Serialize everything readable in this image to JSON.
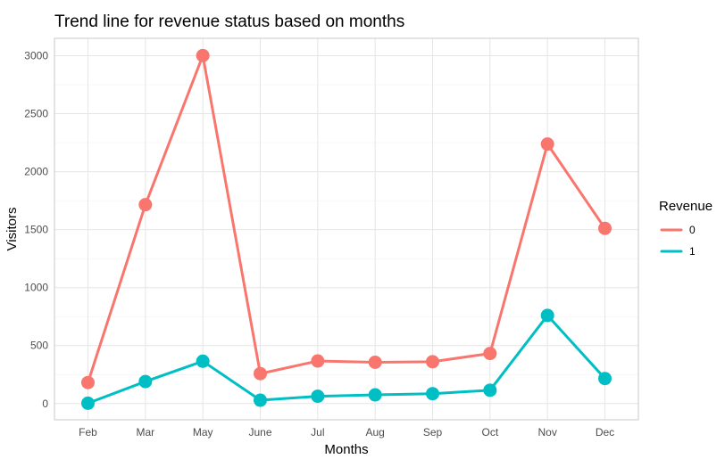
{
  "chart_data": {
    "type": "line",
    "title": "Trend line for revenue status based on months",
    "xlabel": "Months",
    "ylabel": "Visitors",
    "categories": [
      "Feb",
      "Mar",
      "May",
      "June",
      "Jul",
      "Aug",
      "Sep",
      "Oct",
      "Nov",
      "Dec"
    ],
    "yticks": [
      0,
      500,
      1000,
      1500,
      2000,
      2500,
      3000
    ],
    "ylim": [
      -140,
      3150
    ],
    "grid": true,
    "legend": {
      "title": "Revenue",
      "position": "right"
    },
    "series": [
      {
        "name": "0",
        "color": "#F8766D",
        "values": [
          181,
          1715,
          3001,
          258,
          367,
          356,
          361,
          432,
          2238,
          1511
        ]
      },
      {
        "name": "1",
        "color": "#00BFC4",
        "values": [
          3,
          190,
          365,
          29,
          63,
          75,
          85,
          115,
          760,
          216
        ]
      }
    ]
  }
}
